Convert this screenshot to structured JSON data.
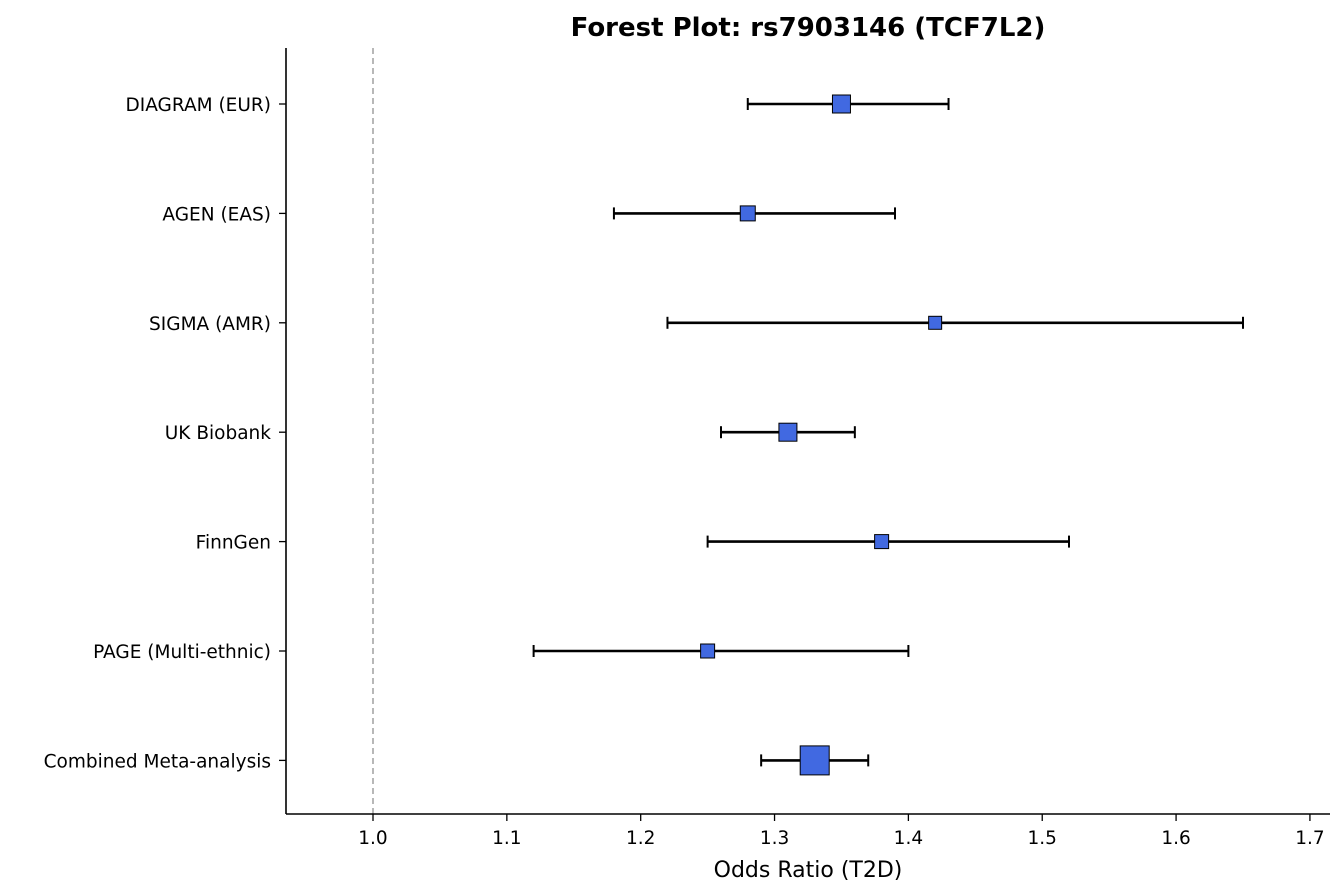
{
  "chart_data": {
    "type": "forest",
    "title": "Forest Plot: rs7903146 (TCF7L2)",
    "xlabel": "Odds Ratio (T2D)",
    "ylabel": "",
    "xlim": [
      0.935,
      1.715
    ],
    "xticks": [
      1.0,
      1.1,
      1.2,
      1.3,
      1.4,
      1.5,
      1.6,
      1.7
    ],
    "xtick_labels": [
      "1.0",
      "1.1",
      "1.2",
      "1.3",
      "1.4",
      "1.5",
      "1.6",
      "1.7"
    ],
    "reference_line": 1.0,
    "grid": false,
    "marker_color": "#4169E1",
    "studies": [
      {
        "label": "DIAGRAM (EUR)",
        "or": 1.35,
        "ci_low": 1.28,
        "ci_high": 1.43,
        "marker_size": 18
      },
      {
        "label": "AGEN (EAS)",
        "or": 1.28,
        "ci_low": 1.18,
        "ci_high": 1.39,
        "marker_size": 15
      },
      {
        "label": "SIGMA (AMR)",
        "or": 1.42,
        "ci_low": 1.22,
        "ci_high": 1.65,
        "marker_size": 13
      },
      {
        "label": "UK Biobank",
        "or": 1.31,
        "ci_low": 1.26,
        "ci_high": 1.36,
        "marker_size": 18
      },
      {
        "label": "FinnGen",
        "or": 1.38,
        "ci_low": 1.25,
        "ci_high": 1.52,
        "marker_size": 14
      },
      {
        "label": "PAGE (Multi-ethnic)",
        "or": 1.25,
        "ci_low": 1.12,
        "ci_high": 1.4,
        "marker_size": 14
      },
      {
        "label": "Combined Meta-analysis",
        "or": 1.33,
        "ci_low": 1.29,
        "ci_high": 1.37,
        "marker_size": 29
      }
    ]
  }
}
